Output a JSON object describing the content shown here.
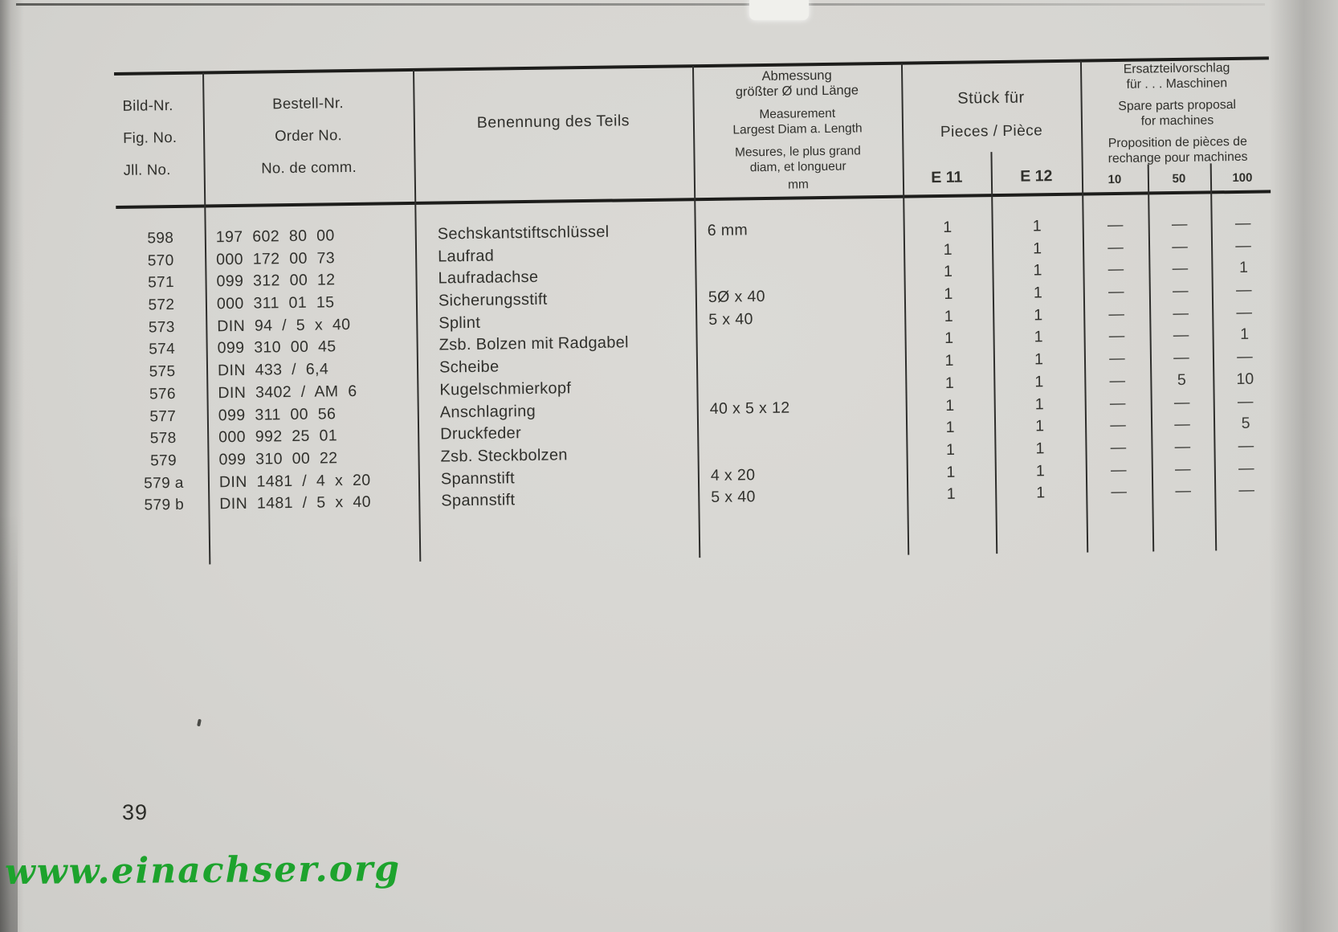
{
  "page": {
    "number": "39",
    "watermark": "www.einachser.org"
  },
  "colors": {
    "paper": "#d6d5d1",
    "ink": "#30302c",
    "watermark_green": "#1da32d"
  },
  "table": {
    "header": {
      "fig": [
        "Bild-Nr.",
        "Fig. No.",
        "Jll. No."
      ],
      "order": [
        "Bestell-Nr.",
        "Order No.",
        "No. de comm."
      ],
      "name": "Benennung des Teils",
      "measurement": [
        "Abmessung",
        "größter Ø und Länge",
        "Measurement",
        "Largest Diam a. Length",
        "Mesures, le plus grand",
        "diam, et longueur",
        "mm"
      ],
      "pieces": {
        "de": "Stück für",
        "en_fr": "Pieces / Pièce",
        "cols": [
          "E 11",
          "E 12"
        ]
      },
      "proposal": {
        "de1": "Ersatzteilvorschlag",
        "de2": "für . . . Maschinen",
        "en1": "Spare parts proposal",
        "en2": "for machines",
        "fr1": "Proposition de pièces de",
        "fr2": "rechange pour machines",
        "cols": [
          "10",
          "50",
          "100"
        ]
      }
    },
    "rows": [
      {
        "fig": "598",
        "order": "197 602 80 00",
        "name": "Sechskantstiftschlüssel",
        "meas": "6 mm",
        "e11": "1",
        "e12": "1",
        "p10": "—",
        "p50": "—",
        "p100": "—"
      },
      {
        "fig": "570",
        "order": "000 172 00 73",
        "name": "Laufrad",
        "meas": "",
        "e11": "1",
        "e12": "1",
        "p10": "—",
        "p50": "—",
        "p100": "—"
      },
      {
        "fig": "571",
        "order": "099 312 00 12",
        "name": "Laufradachse",
        "meas": "",
        "e11": "1",
        "e12": "1",
        "p10": "—",
        "p50": "—",
        "p100": "1"
      },
      {
        "fig": "572",
        "order": "000 311 01 15",
        "name": "Sicherungsstift",
        "meas": "5Ø x 40",
        "e11": "1",
        "e12": "1",
        "p10": "—",
        "p50": "—",
        "p100": "—"
      },
      {
        "fig": "573",
        "order": "DIN 94 / 5 x 40",
        "name": "Splint",
        "meas": "5 x 40",
        "e11": "1",
        "e12": "1",
        "p10": "—",
        "p50": "—",
        "p100": "—"
      },
      {
        "fig": "574",
        "order": "099 310 00 45",
        "name": "Zsb. Bolzen mit Radgabel",
        "meas": "",
        "e11": "1",
        "e12": "1",
        "p10": "—",
        "p50": "—",
        "p100": "1"
      },
      {
        "fig": "575",
        "order": "DIN 433 / 6,4",
        "name": "Scheibe",
        "meas": "",
        "e11": "1",
        "e12": "1",
        "p10": "—",
        "p50": "—",
        "p100": "—"
      },
      {
        "fig": "576",
        "order": "DIN 3402 / AM 6",
        "name": "Kugelschmierkopf",
        "meas": "",
        "e11": "1",
        "e12": "1",
        "p10": "—",
        "p50": "5",
        "p100": "10"
      },
      {
        "fig": "577",
        "order": "099 311 00 56",
        "name": "Anschlagring",
        "meas": "40 x 5 x 12",
        "e11": "1",
        "e12": "1",
        "p10": "—",
        "p50": "—",
        "p100": "—"
      },
      {
        "fig": "578",
        "order": "000 992 25 01",
        "name": "Druckfeder",
        "meas": "",
        "e11": "1",
        "e12": "1",
        "p10": "—",
        "p50": "—",
        "p100": "5"
      },
      {
        "fig": "579",
        "order": "099 310 00 22",
        "name": "Zsb. Steckbolzen",
        "meas": "",
        "e11": "1",
        "e12": "1",
        "p10": "—",
        "p50": "—",
        "p100": "—"
      },
      {
        "fig": "579 a",
        "order": "DIN 1481 / 4 x 20",
        "name": "Spannstift",
        "meas": "4 x 20",
        "e11": "1",
        "e12": "1",
        "p10": "—",
        "p50": "—",
        "p100": "—"
      },
      {
        "fig": "579 b",
        "order": "DIN 1481 / 5 x 40",
        "name": "Spannstift",
        "meas": "5 x 40",
        "e11": "1",
        "e12": "1",
        "p10": "—",
        "p50": "—",
        "p100": "—"
      }
    ]
  }
}
